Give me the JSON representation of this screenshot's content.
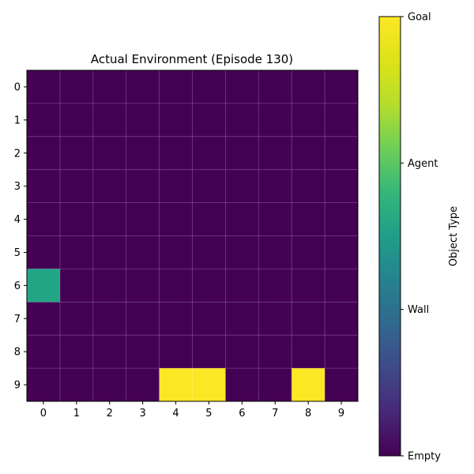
{
  "chart_data": {
    "type": "heatmap",
    "title": "Actual Environment (Episode 130)",
    "xlabel": "",
    "ylabel": "",
    "x_ticks": [
      0,
      1,
      2,
      3,
      4,
      5,
      6,
      7,
      8,
      9
    ],
    "y_ticks": [
      0,
      1,
      2,
      3,
      4,
      5,
      6,
      7,
      8,
      9
    ],
    "grid": true,
    "colormap": "viridis",
    "value_range": [
      0,
      3
    ],
    "colorbar": {
      "label": "Object Type",
      "ticks": [
        {
          "value": 0,
          "label": "Empty"
        },
        {
          "value": 1,
          "label": "Wall"
        },
        {
          "value": 2,
          "label": "Agent"
        },
        {
          "value": 3,
          "label": "Goal"
        }
      ]
    },
    "grid_values": [
      [
        0,
        0,
        0,
        0,
        0,
        0,
        0,
        0,
        0,
        0
      ],
      [
        0,
        0,
        0,
        0,
        0,
        0,
        0,
        0,
        0,
        0
      ],
      [
        0,
        0,
        0,
        0,
        0,
        0,
        0,
        0,
        0,
        0
      ],
      [
        0,
        0,
        0,
        0,
        0,
        0,
        0,
        0,
        0,
        0
      ],
      [
        0,
        0,
        0,
        0,
        0,
        0,
        0,
        0,
        0,
        0
      ],
      [
        0,
        0,
        0,
        0,
        0,
        0,
        0,
        0,
        0,
        0
      ],
      [
        2,
        0,
        0,
        0,
        0,
        0,
        0,
        0,
        0,
        0
      ],
      [
        0,
        0,
        0,
        0,
        0,
        0,
        0,
        0,
        0,
        0
      ],
      [
        0,
        0,
        0,
        0,
        0,
        0,
        0,
        0,
        0,
        0
      ],
      [
        0,
        0,
        0,
        0,
        3,
        3,
        0,
        0,
        3,
        0
      ]
    ],
    "colors": {
      "Empty": "#440154",
      "Wall": "#31688e",
      "Agent": "#21a585",
      "Goal": "#fde725"
    }
  }
}
